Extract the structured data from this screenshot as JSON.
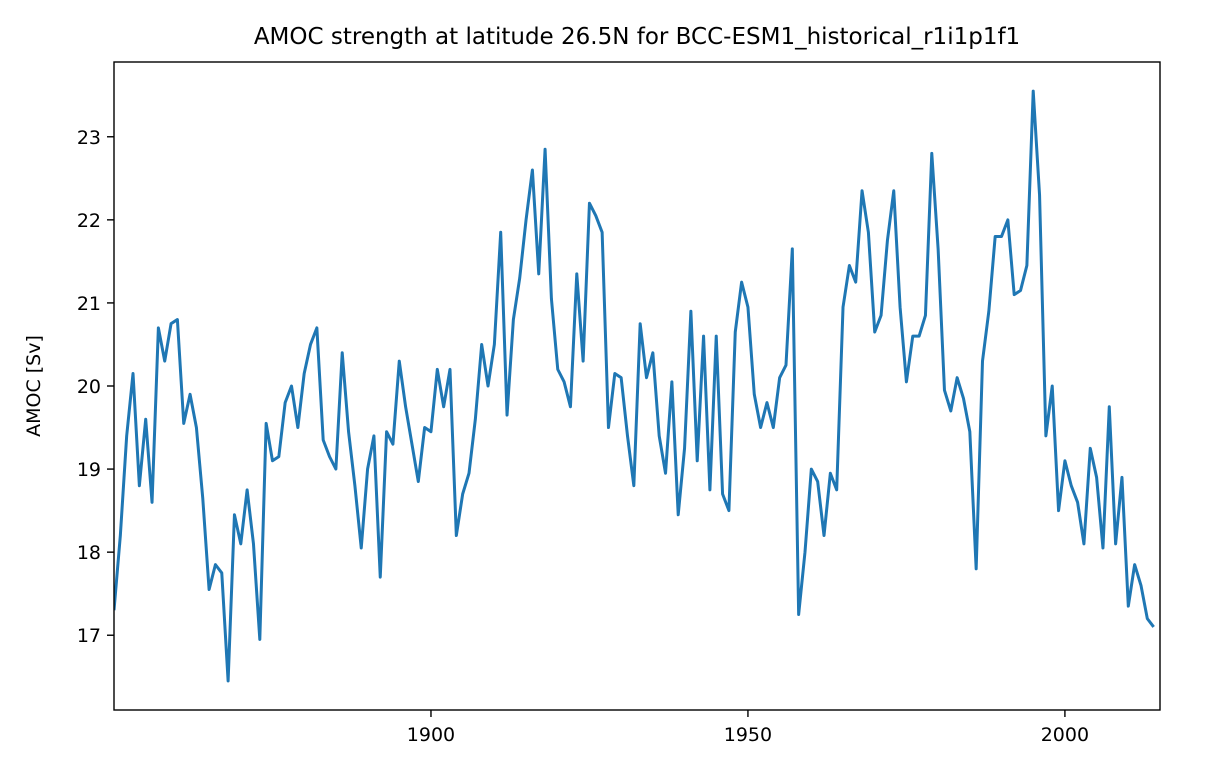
{
  "chart_data": {
    "type": "line",
    "title": "AMOC strength at latitude 26.5N for BCC-ESM1_historical_r1i1p1f1",
    "xlabel": "",
    "ylabel": "AMOC [Sv]",
    "xlim": [
      1850,
      2015
    ],
    "ylim": [
      16.1,
      23.9
    ],
    "xticks": [
      1900,
      1950,
      2000
    ],
    "yticks": [
      17,
      18,
      19,
      20,
      21,
      22,
      23
    ],
    "grid": false,
    "line_color": "#1f77b4",
    "x": [
      1850,
      1851,
      1852,
      1853,
      1854,
      1855,
      1856,
      1857,
      1858,
      1859,
      1860,
      1861,
      1862,
      1863,
      1864,
      1865,
      1866,
      1867,
      1868,
      1869,
      1870,
      1871,
      1872,
      1873,
      1874,
      1875,
      1876,
      1877,
      1878,
      1879,
      1880,
      1881,
      1882,
      1883,
      1884,
      1885,
      1886,
      1887,
      1888,
      1889,
      1890,
      1891,
      1892,
      1893,
      1894,
      1895,
      1896,
      1897,
      1898,
      1899,
      1900,
      1901,
      1902,
      1903,
      1904,
      1905,
      1906,
      1907,
      1908,
      1909,
      1910,
      1911,
      1912,
      1913,
      1914,
      1915,
      1916,
      1917,
      1918,
      1919,
      1920,
      1921,
      1922,
      1923,
      1924,
      1925,
      1926,
      1927,
      1928,
      1929,
      1930,
      1931,
      1932,
      1933,
      1934,
      1935,
      1936,
      1937,
      1938,
      1939,
      1940,
      1941,
      1942,
      1943,
      1944,
      1945,
      1946,
      1947,
      1948,
      1949,
      1950,
      1951,
      1952,
      1953,
      1954,
      1955,
      1956,
      1957,
      1958,
      1959,
      1960,
      1961,
      1962,
      1963,
      1964,
      1965,
      1966,
      1967,
      1968,
      1969,
      1970,
      1971,
      1972,
      1973,
      1974,
      1975,
      1976,
      1977,
      1978,
      1979,
      1980,
      1981,
      1982,
      1983,
      1984,
      1985,
      1986,
      1987,
      1988,
      1989,
      1990,
      1991,
      1992,
      1993,
      1994,
      1995,
      1996,
      1997,
      1998,
      1999,
      2000,
      2001,
      2002,
      2003,
      2004,
      2005,
      2006,
      2007,
      2008,
      2009,
      2010,
      2011,
      2012,
      2013,
      2014
    ],
    "series": [
      {
        "values": [
          17.3,
          18.2,
          19.4,
          20.15,
          18.8,
          19.6,
          18.6,
          20.7,
          20.3,
          20.75,
          20.8,
          19.55,
          19.9,
          19.5,
          18.65,
          17.55,
          17.85,
          17.75,
          16.45,
          18.45,
          18.1,
          18.75,
          18.1,
          16.95,
          19.55,
          19.1,
          19.15,
          19.8,
          20.0,
          19.5,
          20.15,
          20.5,
          20.7,
          19.35,
          19.15,
          19.0,
          20.4,
          19.45,
          18.8,
          18.05,
          19.0,
          19.4,
          17.7,
          19.45,
          19.3,
          20.3,
          19.75,
          19.3,
          18.85,
          19.5,
          19.45,
          20.2,
          19.75,
          20.2,
          18.2,
          18.7,
          18.95,
          19.6,
          20.5,
          20.0,
          20.5,
          21.85,
          19.65,
          20.8,
          21.3,
          22.0,
          22.6,
          21.35,
          22.85,
          21.05,
          20.2,
          20.05,
          19.75,
          21.35,
          20.3,
          22.2,
          22.05,
          21.85,
          19.5,
          20.15,
          20.1,
          19.4,
          18.8,
          20.75,
          20.1,
          20.4,
          19.4,
          18.95,
          20.05,
          18.45,
          19.25,
          20.9,
          19.1,
          20.6,
          18.75,
          20.6,
          18.7,
          18.5,
          20.65,
          21.25,
          20.95,
          19.9,
          19.5,
          19.8,
          19.5,
          20.1,
          20.25,
          21.65,
          17.25,
          18.0,
          19.0,
          18.85,
          18.2,
          18.95,
          18.75,
          20.95,
          21.45,
          21.25,
          22.35,
          21.85,
          20.65,
          20.85,
          21.75,
          22.35,
          20.95,
          20.05,
          20.6,
          20.6,
          20.85,
          22.8,
          21.65,
          19.95,
          19.7,
          20.1,
          19.85,
          19.45,
          17.8,
          20.3,
          20.9,
          21.8,
          21.8,
          22.0,
          21.1,
          21.15,
          21.45,
          23.55,
          22.3,
          19.4,
          20.0,
          18.5,
          19.1,
          18.8,
          18.6,
          18.1,
          19.25,
          18.9,
          18.05,
          19.75,
          18.1,
          18.9,
          17.35,
          17.85,
          17.6,
          17.2,
          17.1
        ]
      }
    ]
  }
}
